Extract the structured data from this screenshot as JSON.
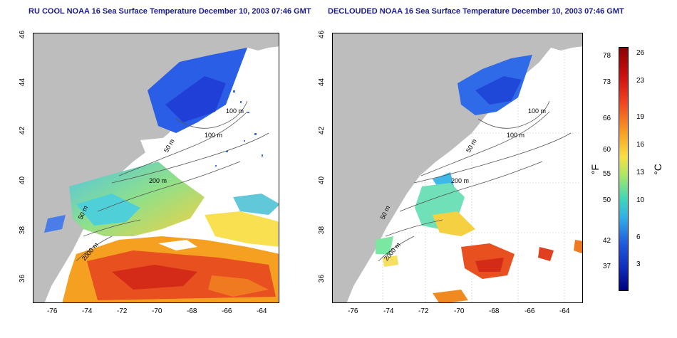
{
  "left_title": "RU COOL NOAA 16 Sea Surface Temperature December 10, 2003 07:46 GMT",
  "right_title": "DECLOUDED NOAA 16 Sea Surface Temperature December 10, 2003 07:46 GMT",
  "x_ticks": [
    "-76",
    "-74",
    "-72",
    "-70",
    "-68",
    "-66",
    "-64"
  ],
  "y_ticks": [
    "46",
    "44",
    "42",
    "40",
    "38",
    "36"
  ],
  "contour_labels": [
    "100 m",
    "100 m",
    "50 m",
    "200 m",
    "50 m",
    "2000 m"
  ],
  "colorbar": {
    "unit_f": "°F",
    "unit_c": "°C",
    "f_ticks": [
      "78",
      "73",
      "66",
      "60",
      "55",
      "50",
      "42",
      "37"
    ],
    "c_ticks": [
      "26",
      "23",
      "19",
      "16",
      "13",
      "10",
      "6",
      "3"
    ]
  },
  "colors": {
    "land": "#bdbdbd",
    "title": "#1a1a8c"
  }
}
